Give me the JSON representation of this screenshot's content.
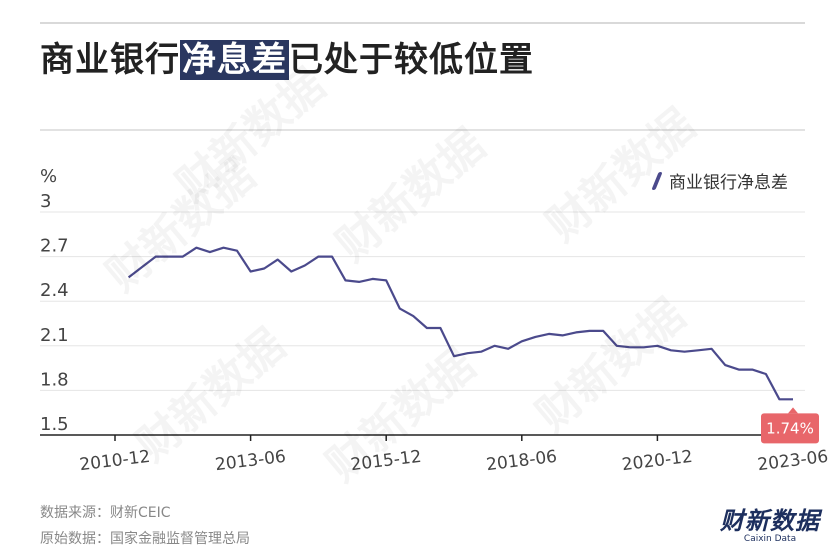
{
  "title": {
    "pre": "商业银行",
    "highlight": "净息差",
    "post": "已处于较低位置"
  },
  "unit": "%",
  "legend": {
    "label": "商业银行净息差"
  },
  "source": {
    "line1": "数据来源：财新CEIC",
    "line2": "原始数据：国家金融监督管理总局"
  },
  "logo": {
    "cn": "财新数据",
    "en": "Caixin Data"
  },
  "watermark": "财新数据",
  "colors": {
    "line": "#4b4a8c",
    "label_bg": "#e8666a",
    "title_bg": "#2a3760",
    "grid": "#e5e5e5"
  },
  "chart_data": {
    "type": "line",
    "ylabel": "%",
    "ylim": [
      1.5,
      3
    ],
    "yticks": [
      1.5,
      1.8,
      2.1,
      2.4,
      2.7,
      3
    ],
    "ytick_labels": [
      "1.5",
      "1.8",
      "2.1",
      "2.4",
      "2.7",
      "3"
    ],
    "xticks": [
      "2010-12",
      "2013-06",
      "2015-12",
      "2018-06",
      "2020-12",
      "2023-06"
    ],
    "x_range": [
      "2010-12",
      "2023-06"
    ],
    "grid": true,
    "legend_position": "top-right",
    "series": [
      {
        "name": "商业银行净息差",
        "x": [
          "2011-03",
          "2011-06",
          "2011-09",
          "2011-12",
          "2012-03",
          "2012-06",
          "2012-09",
          "2012-12",
          "2013-03",
          "2013-06",
          "2013-09",
          "2013-12",
          "2014-03",
          "2014-06",
          "2014-09",
          "2014-12",
          "2015-03",
          "2015-06",
          "2015-09",
          "2015-12",
          "2016-03",
          "2016-06",
          "2016-09",
          "2016-12",
          "2017-03",
          "2017-06",
          "2017-09",
          "2017-12",
          "2018-03",
          "2018-06",
          "2018-09",
          "2018-12",
          "2019-03",
          "2019-06",
          "2019-09",
          "2019-12",
          "2020-03",
          "2020-06",
          "2020-09",
          "2020-12",
          "2021-03",
          "2021-06",
          "2021-09",
          "2021-12",
          "2022-03",
          "2022-06",
          "2022-09",
          "2022-12",
          "2023-03",
          "2023-06"
        ],
        "values": [
          2.56,
          2.63,
          2.7,
          2.7,
          2.7,
          2.76,
          2.73,
          2.76,
          2.74,
          2.6,
          2.62,
          2.68,
          2.6,
          2.64,
          2.7,
          2.7,
          2.54,
          2.53,
          2.55,
          2.54,
          2.35,
          2.3,
          2.22,
          2.22,
          2.03,
          2.05,
          2.06,
          2.1,
          2.08,
          2.13,
          2.16,
          2.18,
          2.17,
          2.19,
          2.2,
          2.2,
          2.1,
          2.09,
          2.09,
          2.1,
          2.07,
          2.06,
          2.07,
          2.08,
          1.97,
          1.94,
          1.94,
          1.91,
          1.74,
          1.74
        ]
      }
    ],
    "annotations": [
      {
        "x": "2023-06",
        "value": 1.74,
        "text": "1.74%"
      }
    ]
  }
}
